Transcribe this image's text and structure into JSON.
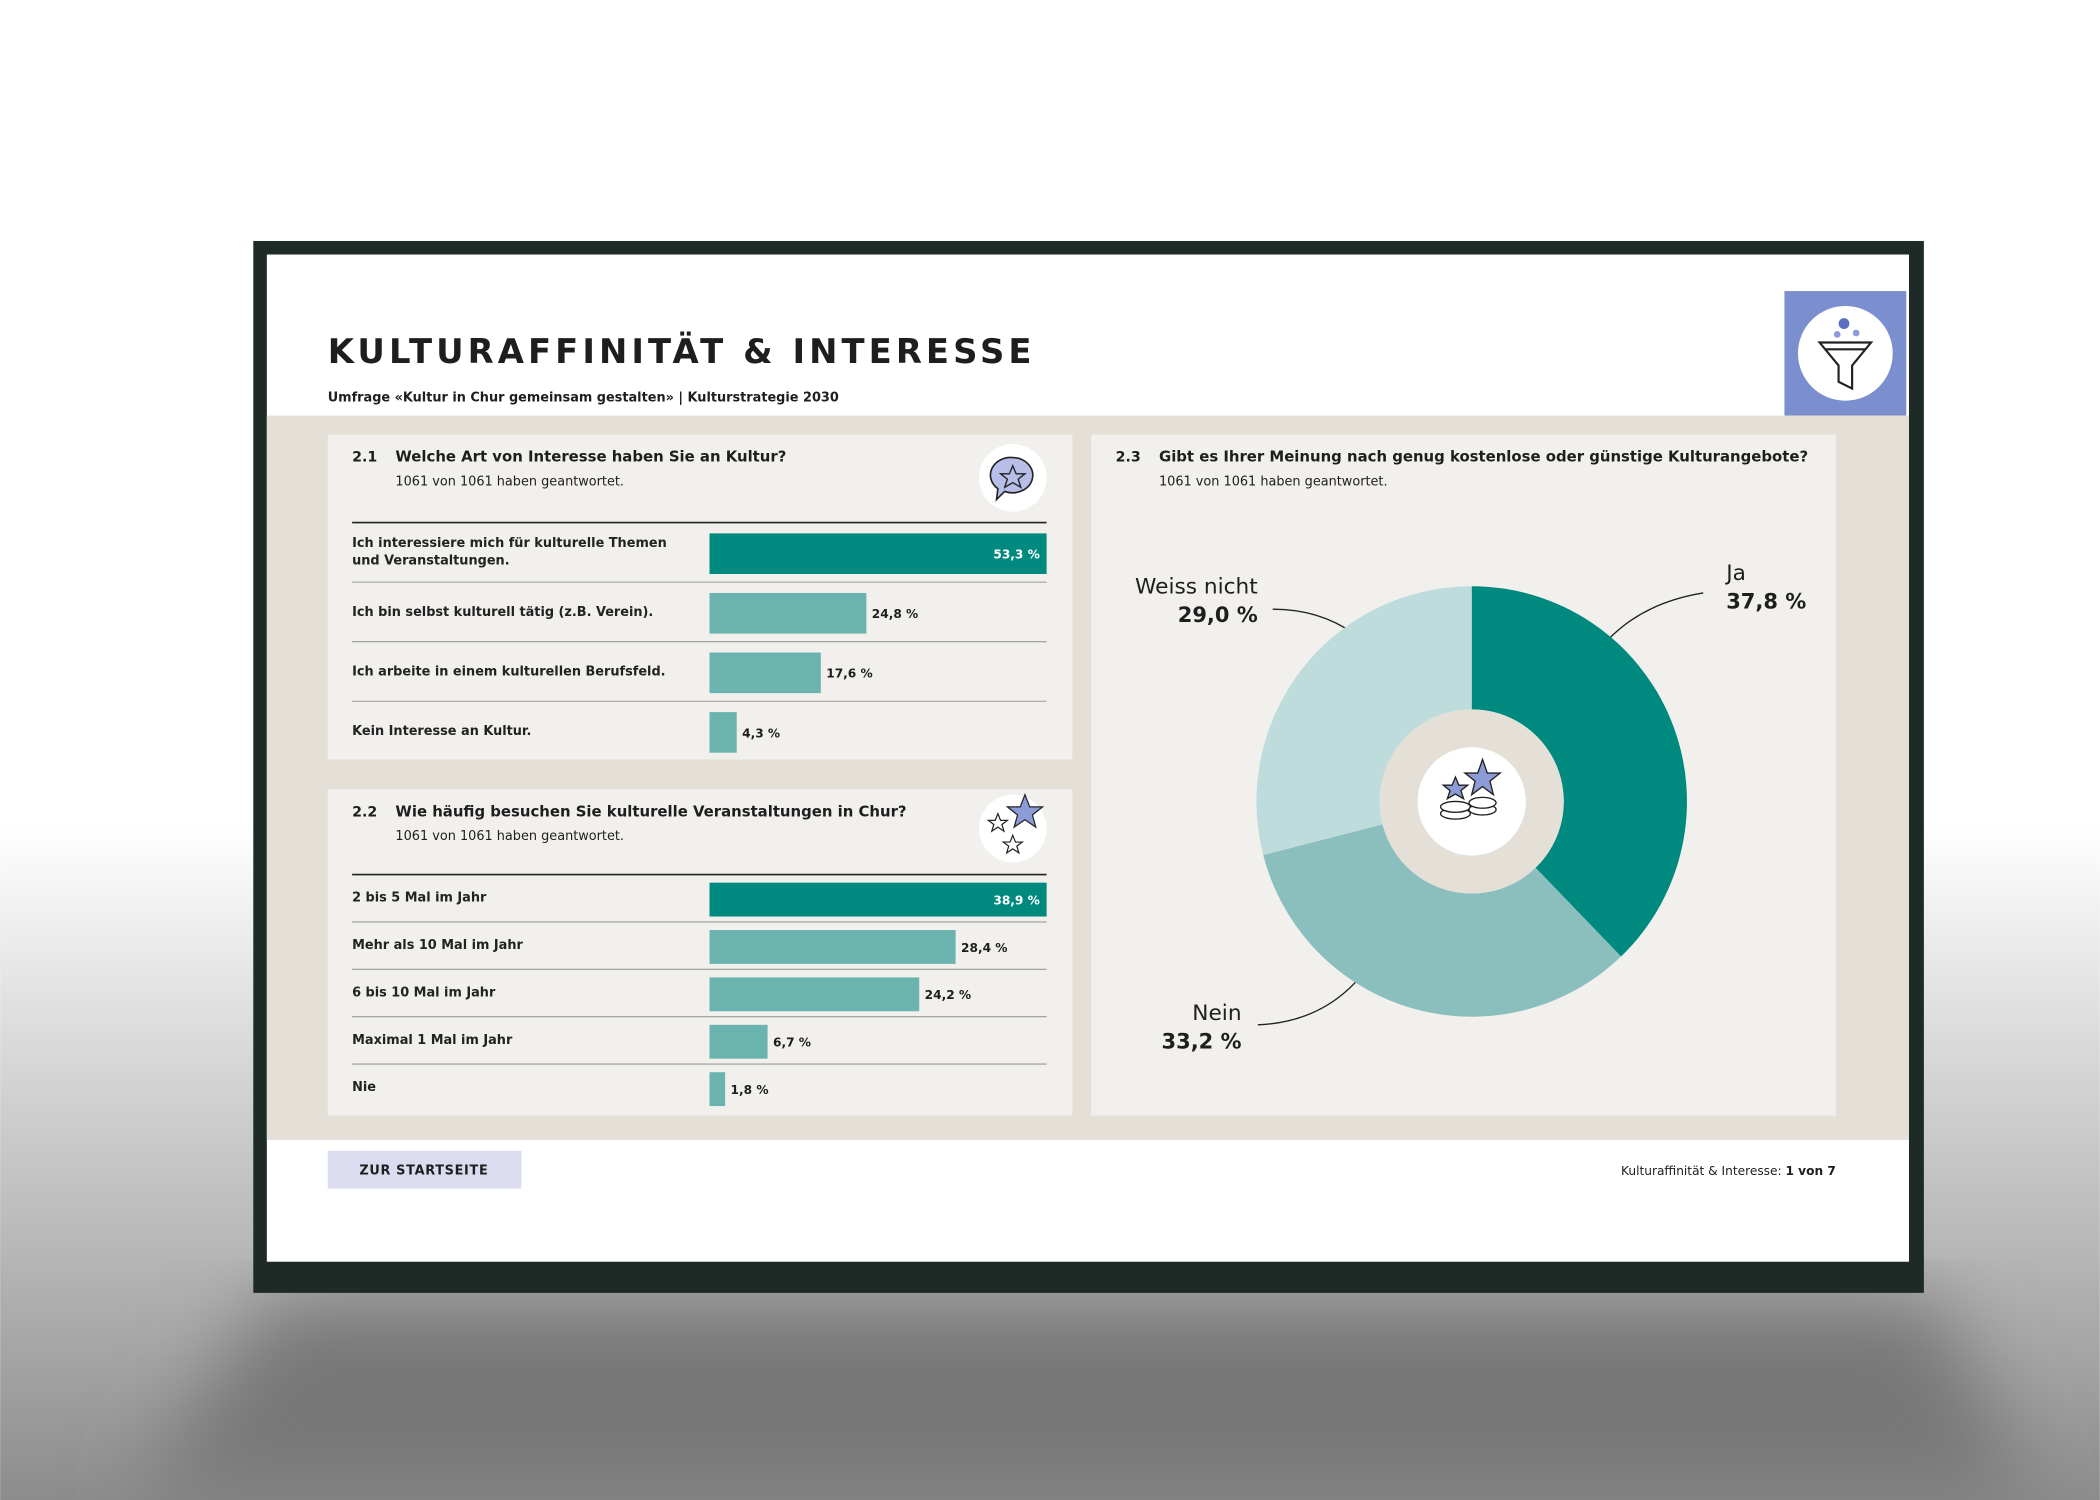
{
  "header": {
    "title": "KULTURAFFINITÄT & INTERESSE",
    "subtitle": "Umfrage «Kultur in Chur gemeinsam gestalten» | Kulturstrategie 2030"
  },
  "chart_data": [
    {
      "type": "bar",
      "number": "2.1",
      "title": "Welche Art von Interesse haben Sie an Kultur?",
      "subtitle": "1061 von 1061 haben geantwortet.",
      "categories": [
        "Ich interessiere mich für kulturelle Themen und Veranstaltungen.",
        "Ich bin selbst kulturell tätig (z.B. Verein).",
        "Ich arbeite in einem kulturellen Berufsfeld.",
        "Kein Interesse an Kultur."
      ],
      "values": [
        53.3,
        24.8,
        17.6,
        4.3
      ],
      "value_labels": [
        "53,3 %",
        "24,8 %",
        "17,6 %",
        "4,3 %"
      ],
      "colors": [
        "#00897e",
        "#6bb3ae",
        "#6bb3ae",
        "#6bb3ae"
      ]
    },
    {
      "type": "bar",
      "number": "2.2",
      "title": "Wie häufig besuchen Sie kulturelle Veranstaltungen in Chur?",
      "subtitle": "1061 von 1061 haben geantwortet.",
      "categories": [
        "2 bis 5 Mal im Jahr",
        "Mehr als 10 Mal im Jahr",
        "6 bis 10 Mal im Jahr",
        "Maximal 1 Mal im Jahr",
        "Nie"
      ],
      "values": [
        38.9,
        28.4,
        24.2,
        6.7,
        1.8
      ],
      "value_labels": [
        "38,9 %",
        "28,4 %",
        "24,2 %",
        "6,7 %",
        "1,8 %"
      ],
      "colors": [
        "#00897e",
        "#6bb3ae",
        "#6bb3ae",
        "#6bb3ae",
        "#6bb3ae"
      ]
    },
    {
      "type": "pie",
      "number": "2.3",
      "title": "Gibt es Ihrer Meinung nach genug kostenlose oder günstige Kulturangebote?",
      "subtitle": "1061 von 1061 haben geantwortet.",
      "categories": [
        "Ja",
        "Nein",
        "Weiss nicht"
      ],
      "values": [
        37.8,
        33.2,
        29.0
      ],
      "value_labels": [
        "37,8 %",
        "33,2 %",
        "29,0 %"
      ],
      "colors": [
        "#00897e",
        "#8bbfbe",
        "#bddcdb"
      ]
    }
  ],
  "footer": {
    "button": "ZUR STARTSEITE",
    "page_label": "Kulturaffinität & Interesse:",
    "page_count": "1 von 7"
  }
}
